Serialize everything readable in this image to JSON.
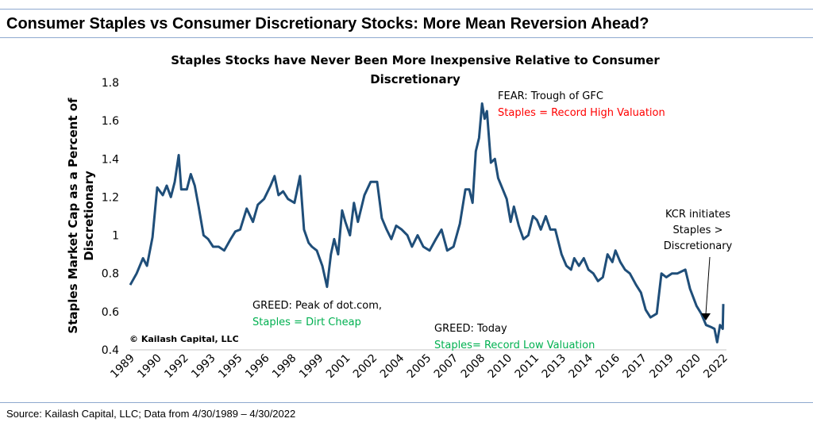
{
  "header": {
    "title": "Consumer Staples vs Consumer Discretionary Stocks: More Mean Reversion Ahead?"
  },
  "footer": {
    "source": "Source: Kailash Capital, LLC; Data from 4/30/1989 – 4/30/2022"
  },
  "colors": {
    "line": "#1f4e79",
    "red": "#ff0000",
    "green": "#00b050",
    "rule": "#8ea9cf"
  },
  "chart_data": {
    "type": "line",
    "title_line1": "Staples Stocks have Never Been More Inexpensive Relative to Consumer",
    "title_line2": "Discretionary",
    "ylabel_line1": "Staples Market Cap as a Percent of",
    "ylabel_line2": "Discretionary",
    "xlabel": "",
    "ylim": [
      0.4,
      1.8
    ],
    "yticks": [
      "0.4",
      "0.6",
      "0.8",
      "1",
      "1.2",
      "1.4",
      "1.6",
      "1.8"
    ],
    "xlim": [
      1989.33,
      2022.33
    ],
    "xtick_labels": [
      "1989",
      "1990",
      "1992",
      "1993",
      "1995",
      "1996",
      "1998",
      "1999",
      "2001",
      "2002",
      "2004",
      "2005",
      "2007",
      "2008",
      "2010",
      "2011",
      "2013",
      "2014",
      "2016",
      "2017",
      "2019",
      "2020",
      "2022"
    ],
    "grid": false,
    "legend": "none",
    "x": [
      1989.33,
      1989.69,
      1990.04,
      1990.26,
      1990.57,
      1990.83,
      1991.14,
      1991.36,
      1991.59,
      1991.81,
      1992.03,
      1992.17,
      1992.48,
      1992.7,
      1992.92,
      1993.14,
      1993.41,
      1993.67,
      1993.94,
      1994.25,
      1994.56,
      1994.92,
      1995.18,
      1995.45,
      1995.81,
      1996.16,
      1996.43,
      1996.78,
      1997.14,
      1997.36,
      1997.58,
      1997.84,
      1998.11,
      1998.47,
      1998.78,
      1999.0,
      1999.26,
      1999.44,
      1999.71,
      2000.02,
      2000.28,
      2000.5,
      2000.68,
      2000.9,
      2001.12,
      2001.3,
      2001.56,
      2001.78,
      2002.0,
      2002.36,
      2002.71,
      2003.07,
      2003.33,
      2003.6,
      2003.86,
      2004.13,
      2004.44,
      2004.75,
      2005.01,
      2005.32,
      2005.64,
      2005.99,
      2006.34,
      2006.65,
      2006.97,
      2007.32,
      2007.67,
      2007.98,
      2008.2,
      2008.38,
      2008.56,
      2008.74,
      2008.91,
      2009.05,
      2009.18,
      2009.4,
      2009.62,
      2009.8,
      2010.06,
      2010.28,
      2010.5,
      2010.68,
      2010.95,
      2011.21,
      2011.48,
      2011.74,
      2011.96,
      2012.18,
      2012.45,
      2012.71,
      2012.98,
      2013.33,
      2013.6,
      2013.86,
      2014.04,
      2014.3,
      2014.57,
      2014.83,
      2015.1,
      2015.36,
      2015.63,
      2015.89,
      2016.16,
      2016.33,
      2016.6,
      2016.86,
      2017.13,
      2017.48,
      2017.75,
      2018.01,
      2018.28,
      2018.63,
      2018.89,
      2019.16,
      2019.47,
      2019.78,
      2020.22,
      2020.48,
      2020.84,
      2021.1,
      2021.37,
      2021.63,
      2021.84,
      2021.99,
      2022.15,
      2022.3,
      2022.33
    ],
    "values": [
      0.74,
      0.8,
      0.88,
      0.84,
      0.99,
      1.25,
      1.21,
      1.26,
      1.2,
      1.28,
      1.42,
      1.24,
      1.24,
      1.32,
      1.26,
      1.15,
      1.0,
      0.98,
      0.94,
      0.94,
      0.92,
      0.98,
      1.02,
      1.03,
      1.14,
      1.07,
      1.16,
      1.19,
      1.26,
      1.31,
      1.21,
      1.23,
      1.19,
      1.17,
      1.31,
      1.03,
      0.96,
      0.94,
      0.92,
      0.84,
      0.73,
      0.9,
      0.98,
      0.9,
      1.13,
      1.07,
      1.0,
      1.17,
      1.07,
      1.21,
      1.28,
      1.28,
      1.09,
      1.03,
      0.98,
      1.05,
      1.03,
      1.0,
      0.94,
      1.0,
      0.94,
      0.92,
      0.98,
      1.03,
      0.92,
      0.94,
      1.06,
      1.24,
      1.24,
      1.17,
      1.44,
      1.51,
      1.69,
      1.61,
      1.65,
      1.38,
      1.4,
      1.3,
      1.24,
      1.19,
      1.07,
      1.15,
      1.05,
      0.98,
      1.0,
      1.1,
      1.08,
      1.03,
      1.1,
      1.03,
      1.03,
      0.9,
      0.84,
      0.82,
      0.88,
      0.84,
      0.88,
      0.82,
      0.8,
      0.76,
      0.78,
      0.9,
      0.86,
      0.92,
      0.86,
      0.82,
      0.8,
      0.74,
      0.7,
      0.61,
      0.57,
      0.59,
      0.8,
      0.78,
      0.8,
      0.8,
      0.82,
      0.72,
      0.63,
      0.59,
      0.53,
      0.52,
      0.51,
      0.44,
      0.53,
      0.51,
      0.64
    ],
    "annotations": {
      "fear_line1": "FEAR: Trough of GFC",
      "fear_line2": "Staples = Record High Valuation",
      "dotcom_line1": "GREED: Peak of dot.com,",
      "dotcom_line2": "Staples = Dirt Cheap",
      "today_line1": "GREED: Today",
      "today_line2": "Staples= Record Low Valuation",
      "kcr_line1": "KCR initiates",
      "kcr_line2": "Staples >",
      "kcr_line3": "Discretionary",
      "copyright": "© Kailash Capital, LLC"
    }
  }
}
